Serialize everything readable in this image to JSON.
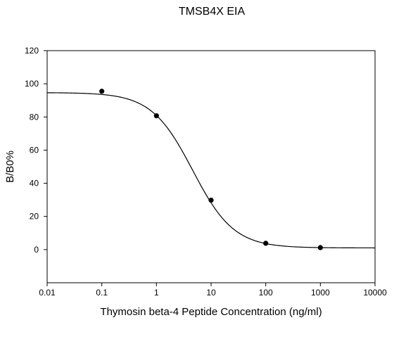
{
  "chart_data": {
    "type": "scatter",
    "title": "TMSB4X EIA",
    "xlabel": "Thymosin beta-4 Peptide Concentration (ng/ml)",
    "ylabel": "B/B0%",
    "xscale": "log",
    "xlim": [
      0.01,
      10000
    ],
    "ylim": [
      -20,
      120
    ],
    "xticks": [
      "0.01",
      "0.1",
      "1",
      "10",
      "100",
      "1000",
      "10000"
    ],
    "yticks": [
      "0",
      "20",
      "40",
      "60",
      "80",
      "100",
      "120"
    ],
    "grid": false,
    "legend": "none",
    "series": [
      {
        "style": "markers",
        "x": [
          0.1,
          1,
          10,
          100,
          1000
        ],
        "y": [
          95.5,
          80.7,
          29.8,
          3.8,
          1.2
        ]
      },
      {
        "style": "fitted curve",
        "fit": {
          "model": "4-parameter logistic",
          "top": 94.7,
          "bottom": 1.0,
          "ec50": 4.6,
          "hill": 1.15
        }
      }
    ]
  }
}
